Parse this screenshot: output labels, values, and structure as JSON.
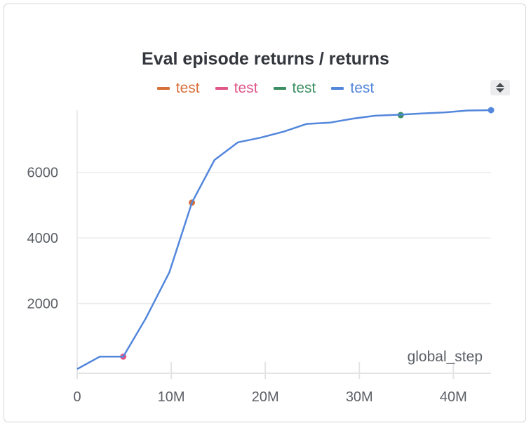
{
  "chart_data": {
    "type": "line",
    "title": "Eval episode returns / returns",
    "xlabel": "global_step",
    "ylabel": "",
    "xlim": [
      0,
      44000000
    ],
    "ylim": [
      0,
      7900
    ],
    "x_ticks": [
      {
        "value": 0,
        "label": "0"
      },
      {
        "value": 10000000,
        "label": "10M"
      },
      {
        "value": 20000000,
        "label": "20M"
      },
      {
        "value": 30000000,
        "label": "30M"
      },
      {
        "value": 40000000,
        "label": "40M"
      }
    ],
    "y_ticks": [
      {
        "value": 2000,
        "label": "2000"
      },
      {
        "value": 4000,
        "label": "4000"
      },
      {
        "value": 6000,
        "label": "6000"
      }
    ],
    "grid": true,
    "legend_position": "top-center",
    "series": [
      {
        "name": "test",
        "color": "#d8703a",
        "x": [
          12200000
        ],
        "y": [
          5080
        ]
      },
      {
        "name": "test",
        "color": "#e0588a",
        "x": [
          4900000
        ],
        "y": [
          380
        ]
      },
      {
        "name": "test",
        "color": "#3d8f63",
        "x": [
          34400000
        ],
        "y": [
          7750
        ]
      },
      {
        "name": "test",
        "color": "#5387dc",
        "x": [
          0,
          2400000,
          4900000,
          7300000,
          9800000,
          12200000,
          14600000,
          17100000,
          19500000,
          22000000,
          24400000,
          26900000,
          29300000,
          31700000,
          34200000,
          36600000,
          39000000,
          41500000,
          44000000
        ],
        "y": [
          0,
          380,
          380,
          1550,
          2950,
          5080,
          6380,
          6920,
          7060,
          7250,
          7480,
          7520,
          7640,
          7730,
          7760,
          7800,
          7830,
          7890,
          7900
        ]
      }
    ]
  },
  "controls": {
    "sort_icon": "sort-arrows-icon"
  }
}
